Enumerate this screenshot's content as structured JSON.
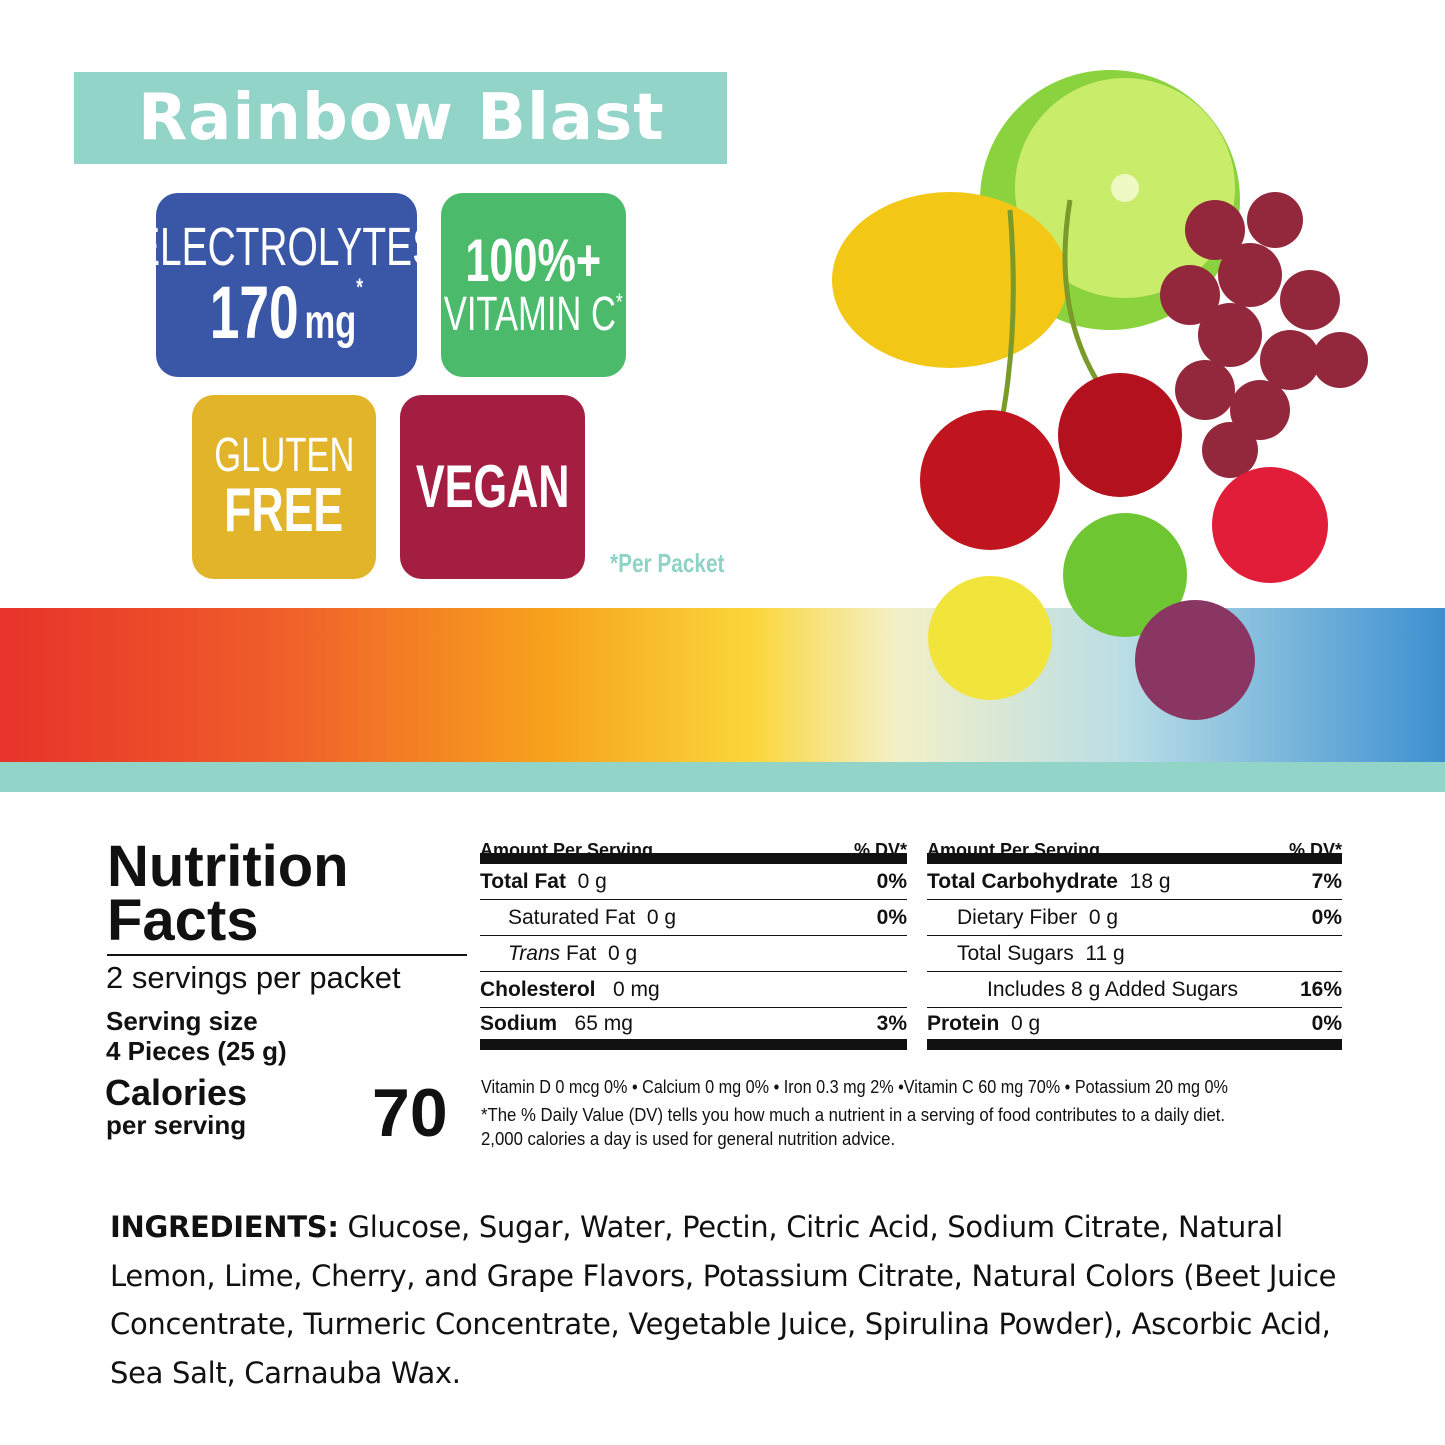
{
  "title": "Rainbow Blast",
  "badges": {
    "electrolytes": {
      "label": "ELECTROLYTES",
      "value": "170",
      "unit": "mg",
      "mark": "*"
    },
    "vitamin_c": {
      "value": "100%+",
      "label": "VITAMIN C",
      "mark": "*"
    },
    "gluten_free": {
      "line1": "GLUTEN",
      "line2": "FREE"
    },
    "vegan": {
      "label": "VEGAN"
    }
  },
  "footnote": "*Per Packet",
  "colors": {
    "teal": "#93d4c8",
    "blue": "#3a57a7",
    "green": "#4bbb6b",
    "yellow": "#e2b42a",
    "red": "#a41e42"
  },
  "nutrition": {
    "title_line1": "Nutrition",
    "title_line2": "Facts",
    "servings": "2 servings per packet",
    "serving_size_label": "Serving size",
    "serving_size": "4 Pieces (25 g)",
    "calories_label": "Calories",
    "calories_sub": "per serving",
    "calories": "70",
    "header_left": "Amount Per Serving",
    "header_right": "% DV*",
    "left_rows": [
      {
        "name": "Total Fat",
        "amount": "0 g",
        "dv": "0%"
      },
      {
        "name": "Saturated Fat",
        "amount": "0 g",
        "dv": "0%"
      },
      {
        "name": "Trans",
        "name2": "Fat",
        "amount": "0 g",
        "dv": ""
      },
      {
        "name": "Cholesterol",
        "amount": "0 mg",
        "dv": ""
      },
      {
        "name": "Sodium",
        "amount": "65 mg",
        "dv": "3%"
      }
    ],
    "right_rows": [
      {
        "name": "Total Carbohydrate",
        "amount": "18 g",
        "dv": "7%"
      },
      {
        "name": "Dietary Fiber",
        "amount": "0 g",
        "dv": "0%"
      },
      {
        "name": "Total Sugars",
        "amount": "11 g",
        "dv": ""
      },
      {
        "name": "Includes 8 g Added Sugars",
        "amount": "",
        "dv": "16%"
      },
      {
        "name": "Protein",
        "amount": "0 g",
        "dv": "0%"
      }
    ],
    "vitamins": "Vitamin D 0 mcg  0% • Calcium 0 mg  0% • Iron 0.3 mg  2% •Vitamin C 60 mg 70% • Potassium 20 mg  0%",
    "footnote_1": "*The % Daily Value (DV) tells you how much a nutrient in a serving of food contributes to a daily diet.",
    "footnote_2": "2,000 calories a day is used for general nutrition advice."
  },
  "ingredients": {
    "label": "INGREDIENTS:",
    "text": " Glucose, Sugar, Water, Pectin, Citric Acid, Sodium Citrate, Natural Lemon, Lime, Cherry, and Grape Flavors, Potassium Citrate, Natural Colors (Beet Juice Concentrate, Turmeric Concentrate, Vegetable Juice, Spirulina Powder), Ascorbic Acid, Sea Salt, Carnauba Wax."
  }
}
